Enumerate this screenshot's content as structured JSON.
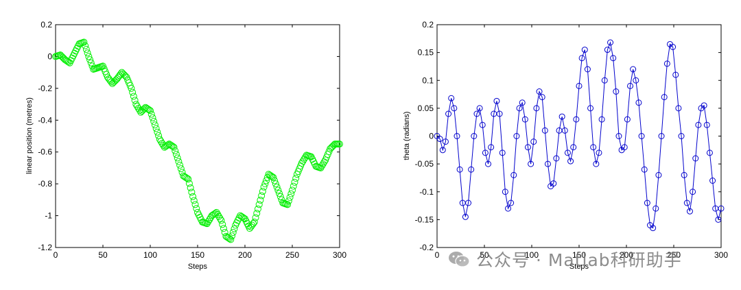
{
  "chart_data": [
    {
      "type": "scatter",
      "xlabel": "Steps",
      "ylabel": "linear position (metres)",
      "xlim": [
        0,
        300
      ],
      "ylim": [
        -1.2,
        0.2
      ],
      "xticks": [
        "0",
        "50",
        "100",
        "150",
        "200",
        "250",
        "300"
      ],
      "yticks": [
        "0.2",
        "0",
        "-0.2",
        "-0.4",
        "-0.6",
        "-0.8",
        "-1",
        "-1.2"
      ],
      "marker": "circle",
      "line": false,
      "color": "#00ee00",
      "x": [
        0,
        5,
        10,
        15,
        20,
        25,
        30,
        35,
        40,
        45,
        50,
        55,
        60,
        65,
        70,
        75,
        80,
        85,
        90,
        95,
        100,
        105,
        110,
        115,
        120,
        125,
        130,
        135,
        140,
        145,
        150,
        155,
        160,
        165,
        170,
        175,
        180,
        185,
        190,
        195,
        200,
        205,
        210,
        215,
        220,
        225,
        230,
        235,
        240,
        245,
        250,
        255,
        260,
        265,
        270,
        275,
        280,
        285,
        290,
        295,
        300
      ],
      "y": [
        0.0,
        0.01,
        -0.02,
        -0.04,
        0.02,
        0.08,
        0.09,
        0.0,
        -0.08,
        -0.07,
        -0.06,
        -0.13,
        -0.17,
        -0.14,
        -0.1,
        -0.13,
        -0.2,
        -0.3,
        -0.35,
        -0.32,
        -0.34,
        -0.43,
        -0.52,
        -0.57,
        -0.55,
        -0.57,
        -0.66,
        -0.75,
        -0.77,
        -0.88,
        -0.98,
        -1.04,
        -1.05,
        -1.0,
        -0.98,
        -1.03,
        -1.13,
        -1.15,
        -1.06,
        -1.0,
        -1.02,
        -1.08,
        -1.04,
        -0.93,
        -0.82,
        -0.74,
        -0.76,
        -0.84,
        -0.92,
        -0.93,
        -0.84,
        -0.74,
        -0.67,
        -0.62,
        -0.63,
        -0.69,
        -0.7,
        -0.65,
        -0.58,
        -0.55,
        -0.55
      ]
    },
    {
      "type": "line",
      "xlabel": "Steps",
      "ylabel": "theta (radians)",
      "xlim": [
        0,
        300
      ],
      "ylim": [
        -0.2,
        0.2
      ],
      "xticks": [
        "0",
        "50",
        "100",
        "150",
        "200",
        "250",
        "300"
      ],
      "yticks": [
        "0.2",
        "0.15",
        "0.1",
        "0.05",
        "0",
        "-0.05",
        "-0.1",
        "-0.15",
        "-0.2"
      ],
      "marker": "circle",
      "line": true,
      "color": "#0000cc",
      "x": [
        0,
        3,
        6,
        9,
        12,
        15,
        18,
        21,
        24,
        27,
        30,
        33,
        36,
        39,
        42,
        45,
        48,
        51,
        54,
        57,
        60,
        63,
        66,
        69,
        72,
        75,
        78,
        81,
        84,
        87,
        90,
        93,
        96,
        99,
        102,
        105,
        108,
        111,
        114,
        117,
        120,
        123,
        126,
        129,
        132,
        135,
        138,
        141,
        144,
        147,
        150,
        153,
        156,
        159,
        162,
        165,
        168,
        171,
        174,
        177,
        180,
        183,
        186,
        189,
        192,
        195,
        198,
        201,
        204,
        207,
        210,
        213,
        216,
        219,
        222,
        225,
        228,
        231,
        234,
        237,
        240,
        243,
        246,
        249,
        252,
        255,
        258,
        261,
        264,
        267,
        270,
        273,
        276,
        279,
        282,
        285,
        288,
        291,
        294,
        297,
        300
      ],
      "y": [
        0.0,
        -0.005,
        -0.025,
        -0.01,
        0.04,
        0.068,
        0.05,
        0.0,
        -0.06,
        -0.12,
        -0.145,
        -0.12,
        -0.06,
        0.0,
        0.04,
        0.05,
        0.02,
        -0.03,
        -0.05,
        -0.02,
        0.04,
        0.063,
        0.04,
        -0.03,
        -0.1,
        -0.13,
        -0.12,
        -0.07,
        0.0,
        0.05,
        0.06,
        0.03,
        -0.02,
        -0.05,
        -0.01,
        0.05,
        0.08,
        0.07,
        0.01,
        -0.05,
        -0.09,
        -0.085,
        -0.04,
        0.01,
        0.035,
        0.01,
        -0.03,
        -0.045,
        -0.02,
        0.03,
        0.09,
        0.14,
        0.155,
        0.12,
        0.05,
        -0.02,
        -0.05,
        -0.03,
        0.03,
        0.1,
        0.155,
        0.168,
        0.14,
        0.08,
        0.0,
        -0.025,
        -0.02,
        0.03,
        0.09,
        0.12,
        0.1,
        0.06,
        0.0,
        -0.06,
        -0.12,
        -0.16,
        -0.165,
        -0.13,
        -0.07,
        0.0,
        0.07,
        0.13,
        0.165,
        0.16,
        0.11,
        0.05,
        0.0,
        -0.07,
        -0.12,
        -0.135,
        -0.1,
        -0.04,
        0.02,
        0.05,
        0.055,
        0.02,
        -0.03,
        -0.08,
        -0.13,
        -0.15,
        -0.13
      ]
    }
  ],
  "watermark": {
    "text": "公众号 · Matlab科研助手",
    "icon": "wechat-icon"
  }
}
